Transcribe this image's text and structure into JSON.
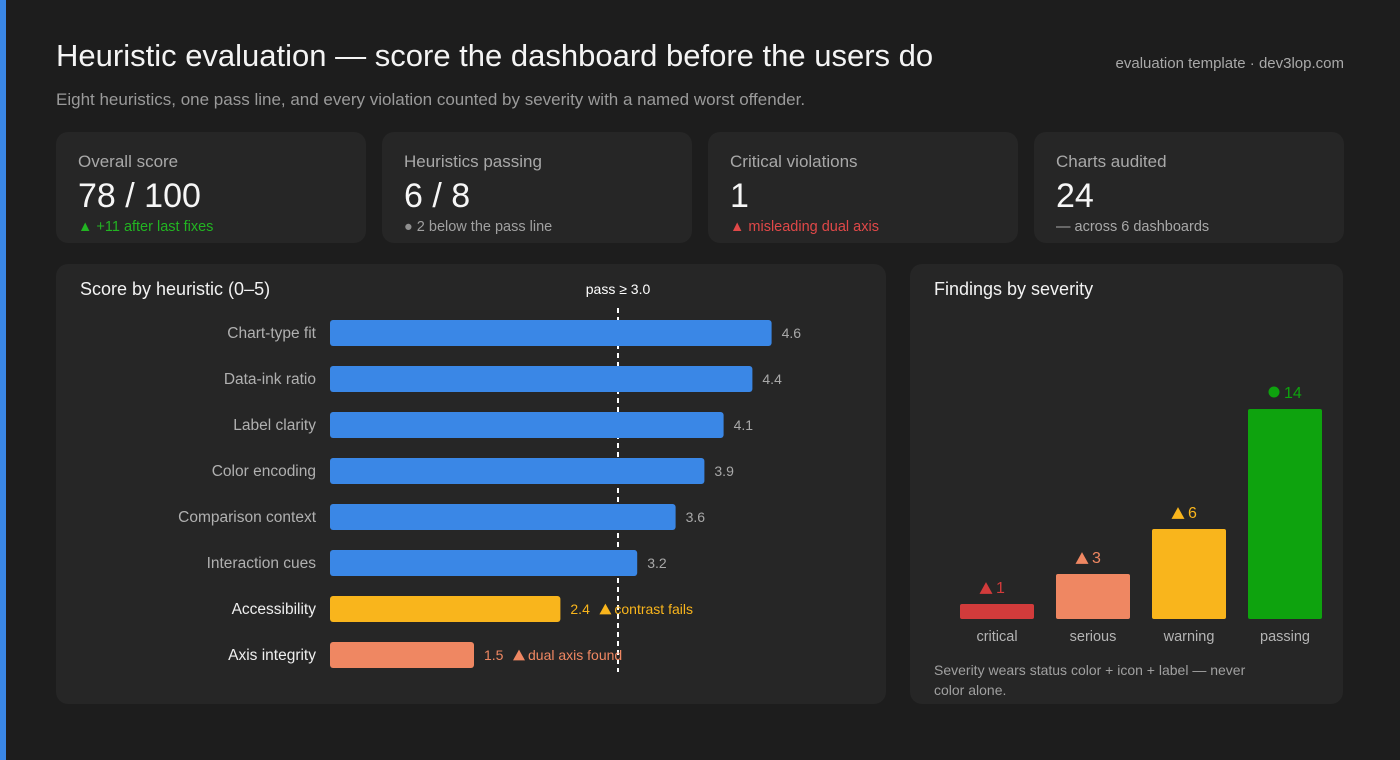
{
  "header": {
    "title": "Heuristic evaluation — score the dashboard before the users do",
    "subtitle": "Eight heuristics, one pass line, and every violation counted by severity with a named worst offender.",
    "source": "evaluation template · dev3lop.com"
  },
  "colors": {
    "pass": "#3a87e6",
    "warning": "#f9b51c",
    "serious": "#ef8762",
    "critical": "#d23b3b",
    "passing": "#0ea30e",
    "neutral": "#8f8f8f"
  },
  "kpis": [
    {
      "label": "Overall score",
      "value": "78 / 100",
      "icon": "triangle-up-icon",
      "glyph": "▲",
      "delta": "+11 after last fixes",
      "tone": "#22b422"
    },
    {
      "label": "Heuristics passing",
      "value": "6 / 8",
      "icon": "dot-icon",
      "glyph": "●",
      "delta": "2 below the pass line",
      "tone": "#a0a0a0"
    },
    {
      "label": "Critical violations",
      "value": "1",
      "icon": "warning-triangle-icon",
      "glyph": "▲",
      "delta": "misleading dual axis",
      "tone": "#e04848"
    },
    {
      "label": "Charts audited",
      "value": "24",
      "icon": "",
      "glyph": "",
      "delta": "— across 6 dashboards",
      "tone": "#a8a8a8"
    }
  ],
  "chart_data": [
    {
      "type": "bar",
      "orientation": "horizontal",
      "title": "Score by heuristic (0–5)",
      "xlim": [
        0,
        5
      ],
      "pass_line": {
        "value": 3.0,
        "label": "pass ≥ 3.0"
      },
      "categories": [
        "Chart-type fit",
        "Data-ink ratio",
        "Label clarity",
        "Color encoding",
        "Comparison context",
        "Interaction cues",
        "Accessibility",
        "Axis integrity"
      ],
      "values": [
        4.6,
        4.4,
        4.1,
        3.9,
        3.6,
        3.2,
        2.4,
        1.5
      ],
      "value_labels": [
        "4.6",
        "4.4",
        "4.1",
        "3.9",
        "3.6",
        "3.2",
        "2.4",
        "1.5"
      ],
      "annotations": [
        "",
        "",
        "",
        "",
        "",
        "",
        "contrast fails",
        "dual axis found"
      ],
      "status": [
        "pass",
        "pass",
        "pass",
        "pass",
        "pass",
        "pass",
        "warning",
        "serious"
      ]
    },
    {
      "type": "bar",
      "title": "Findings by severity",
      "categories": [
        "critical",
        "serious",
        "warning",
        "passing"
      ],
      "values": [
        1,
        3,
        6,
        14
      ],
      "icons": [
        "triangle-icon",
        "triangle-icon",
        "triangle-icon",
        "dot-icon"
      ],
      "status": [
        "critical",
        "serious",
        "warning",
        "passing"
      ]
    }
  ],
  "severity_note": "Severity wears status color + icon + label — never color alone."
}
